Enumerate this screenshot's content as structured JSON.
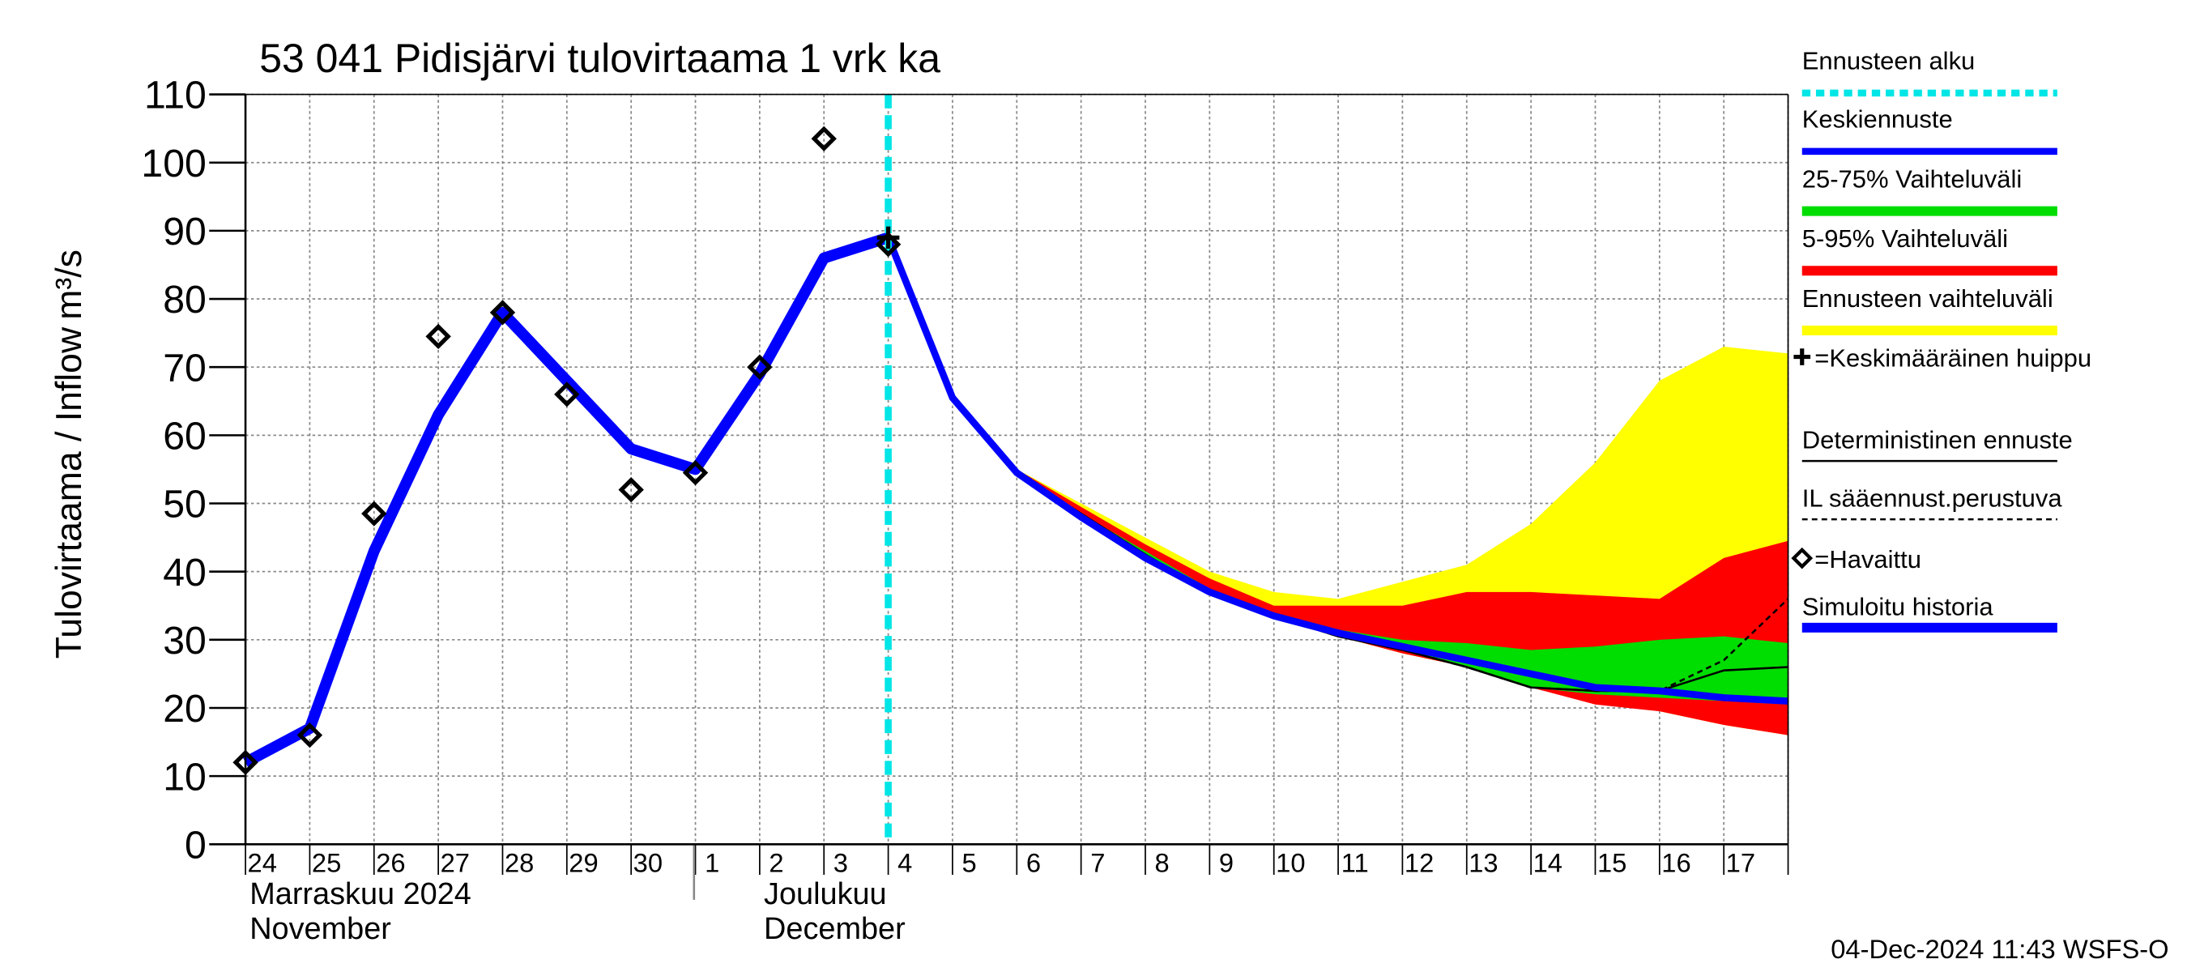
{
  "chart_data": {
    "type": "line",
    "title": "53 041 Pidisjärvi tulovirtaama 1 vrk ka",
    "y_label": "Tulovirtaama / Inflow",
    "y_unit": "m³/s",
    "footer": "04-Dec-2024 11:43 WSFS-O",
    "categories": [
      "24",
      "25",
      "26",
      "27",
      "28",
      "29",
      "30",
      "1",
      "2",
      "3",
      "4",
      "5",
      "6",
      "7",
      "8",
      "9",
      "10",
      "11",
      "12",
      "13",
      "14",
      "15",
      "16",
      "17",
      null
    ],
    "months": [
      {
        "fi": "Marraskuu 2024",
        "en": "November",
        "at": "24"
      },
      {
        "fi": "Joulukuu",
        "en": "December",
        "at": "2"
      }
    ],
    "ylim": [
      0,
      110
    ],
    "yticks": [
      0,
      10,
      20,
      30,
      40,
      50,
      60,
      70,
      80,
      90,
      100,
      110
    ],
    "grid": true,
    "forecast_start": {
      "name": "Ennusteen alku",
      "at": "4",
      "color": "#00e5e5"
    },
    "bands": [
      {
        "name": "Ennusteen vaihteluväli",
        "color": "#ffff00",
        "high": [
          null,
          null,
          null,
          null,
          null,
          null,
          null,
          null,
          null,
          null,
          null,
          null,
          55,
          50,
          45,
          40,
          37,
          36,
          38.5,
          41,
          47,
          56,
          68,
          73,
          72
        ],
        "low": [
          null,
          null,
          null,
          null,
          null,
          null,
          null,
          null,
          null,
          null,
          null,
          null,
          54,
          48,
          42,
          37,
          33,
          30.5,
          28,
          26,
          23,
          21,
          19.5,
          17.5,
          16
        ]
      },
      {
        "name": "5-95% Vaihteluväli",
        "color": "#ff0000",
        "high": [
          null,
          null,
          null,
          null,
          null,
          null,
          null,
          null,
          null,
          null,
          null,
          null,
          55,
          49.5,
          44,
          39,
          35,
          35,
          35,
          37,
          37,
          36.5,
          36,
          42,
          44.5
        ],
        "low": [
          null,
          null,
          null,
          null,
          null,
          null,
          null,
          null,
          null,
          null,
          null,
          null,
          54,
          48,
          42,
          37,
          33,
          30.5,
          28,
          26,
          23,
          20.5,
          19.5,
          17.5,
          16
        ]
      },
      {
        "name": "25-75% Vaihteluväli",
        "color": "#00dd00",
        "high": [
          null,
          null,
          null,
          null,
          null,
          null,
          null,
          null,
          null,
          null,
          null,
          null,
          54.5,
          48.5,
          43,
          37.5,
          34,
          31.5,
          30,
          29.5,
          28.5,
          29,
          30,
          30.5,
          29.5
        ],
        "low": [
          null,
          null,
          null,
          null,
          null,
          null,
          null,
          null,
          null,
          null,
          null,
          null,
          54,
          48,
          42,
          37,
          33,
          30.5,
          28.5,
          26,
          23,
          22,
          21.5,
          21,
          20.5
        ]
      }
    ],
    "series": [
      {
        "name": "IL sääennust.perustuva",
        "color": "#000000",
        "dash": true,
        "width": 1.5,
        "values": [
          null,
          null,
          null,
          null,
          null,
          null,
          null,
          null,
          null,
          null,
          89,
          65.5,
          54.5,
          48.5,
          42.5,
          37,
          33.5,
          30.5,
          28.5,
          26,
          23,
          22.5,
          22.5,
          27,
          36
        ]
      },
      {
        "name": "Deterministinen ennuste",
        "color": "#000000",
        "dash": false,
        "width": 1.5,
        "values": [
          null,
          null,
          null,
          null,
          null,
          null,
          null,
          null,
          null,
          null,
          89,
          65.5,
          54.5,
          48.5,
          42.5,
          37,
          33.5,
          30.5,
          28.5,
          26,
          23,
          22.5,
          22.5,
          25.5,
          26
        ]
      },
      {
        "name": "Simuloitu historia",
        "color": "#0000ff",
        "dash": false,
        "width": 8,
        "values": [
          12,
          17,
          43,
          63,
          78,
          68,
          58,
          55,
          69,
          86,
          89,
          null,
          null,
          null,
          null,
          null,
          null,
          null,
          null,
          null,
          null,
          null,
          null,
          null,
          null
        ]
      },
      {
        "name": "Keskiennuste",
        "color": "#0000ff",
        "dash": false,
        "width": 5,
        "values": [
          null,
          null,
          null,
          null,
          null,
          null,
          null,
          null,
          null,
          null,
          89,
          65.5,
          54.5,
          48,
          42,
          37,
          33.5,
          31,
          29,
          27,
          25,
          23,
          22.5,
          21.5,
          21
        ]
      }
    ],
    "observed": {
      "name": "=Havaittu",
      "color": "#000000",
      "values": [
        12,
        16,
        48.5,
        74.5,
        78,
        66,
        52,
        54.5,
        70,
        103.5,
        88,
        null,
        null,
        null,
        null,
        null,
        null,
        null,
        null,
        null,
        null,
        null,
        null,
        null,
        null
      ]
    },
    "peak": {
      "name": "=Keskimääräinen huippu",
      "at": "4",
      "value": 89,
      "color": "#000000"
    }
  }
}
